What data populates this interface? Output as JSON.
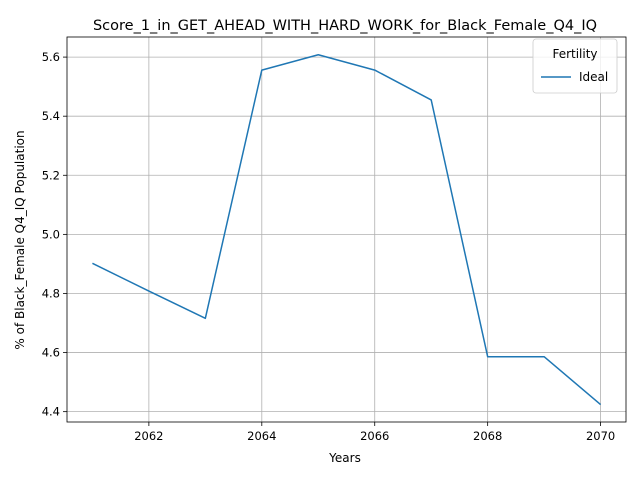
{
  "chart_data": {
    "type": "line",
    "title": "Score_1_in_GET_AHEAD_WITH_HARD_WORK_for_Black_Female_Q4_IQ",
    "xlabel": "Years",
    "ylabel": "% of Black_Female Q4_IQ Population",
    "xlim": [
      2060.55,
      2070.45
    ],
    "ylim": [
      4.365,
      5.668
    ],
    "xticks": [
      2062,
      2064,
      2066,
      2068,
      2070
    ],
    "xtick_labels": [
      "2062",
      "2064",
      "2066",
      "2068",
      "2070"
    ],
    "yticks": [
      4.4,
      4.6,
      4.8,
      5.0,
      5.2,
      5.4,
      5.6
    ],
    "ytick_labels": [
      "4.4",
      "4.6",
      "4.8",
      "5.0",
      "5.2",
      "5.4",
      "5.6"
    ],
    "grid": true,
    "legend": {
      "title": "Fertility",
      "placement": "top-right"
    },
    "series": [
      {
        "name": "Ideal",
        "color": "#1f77b4",
        "x": [
          2061,
          2062,
          2063,
          2064,
          2065,
          2066,
          2067,
          2068,
          2069,
          2070
        ],
        "y": [
          4.902,
          4.808,
          4.716,
          5.556,
          5.608,
          5.556,
          5.455,
          4.586,
          4.586,
          4.424
        ]
      }
    ]
  }
}
